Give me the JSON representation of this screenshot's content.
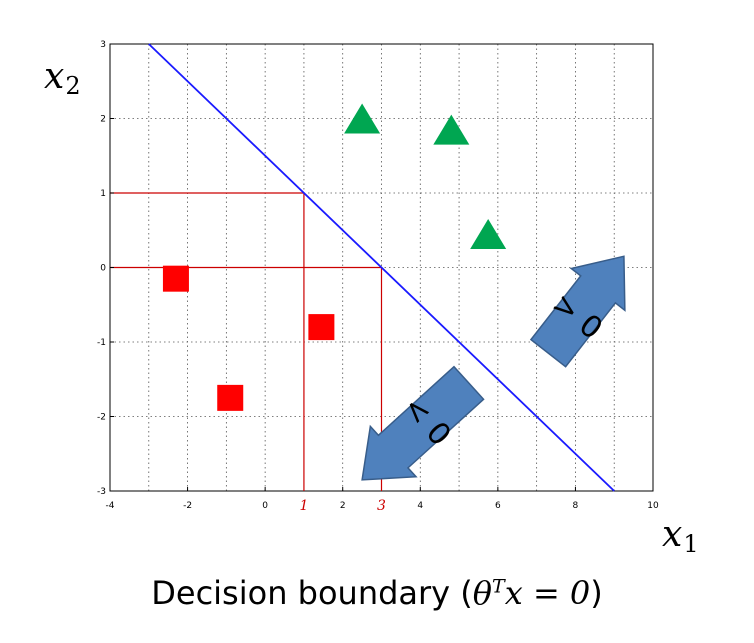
{
  "chart_data": {
    "type": "scatter",
    "title": "",
    "xlim": [
      -4,
      10
    ],
    "ylim": [
      -3,
      3
    ],
    "x_ticks": [
      -4,
      -2,
      0,
      2,
      4,
      6,
      8,
      10
    ],
    "y_ticks": [
      -3,
      -2,
      -1,
      0,
      1,
      2,
      3
    ],
    "grid": true,
    "xlabel": {
      "var": "x",
      "sub": "1"
    },
    "ylabel": {
      "var": "x",
      "sub": "2"
    },
    "boundary_line": {
      "from": [
        -3,
        3
      ],
      "to": [
        9,
        -3
      ],
      "color": "#1a1aff"
    },
    "reference_lines": [
      {
        "x": 1,
        "y": 1
      },
      {
        "x": 3,
        "y": 0
      }
    ],
    "reference_ticks": [
      {
        "x": 1,
        "label": "1"
      },
      {
        "x": 3,
        "label": "3"
      }
    ],
    "series": [
      {
        "marker": "square",
        "color": "#ff0000",
        "points": [
          [
            -2.3,
            -0.15
          ],
          [
            1.45,
            -0.8
          ],
          [
            -0.9,
            -1.75
          ]
        ]
      },
      {
        "marker": "triangle",
        "color": "#00a651",
        "points": [
          [
            2.5,
            2.0
          ],
          [
            4.8,
            1.85
          ],
          [
            5.75,
            0.45
          ]
        ]
      }
    ],
    "region_arrows": [
      {
        "label": "> 0",
        "tail": [
          7.3,
          -1.15
        ],
        "head": [
          9.25,
          0.15
        ]
      },
      {
        "label": "< 0",
        "tail": [
          5.25,
          -1.55
        ],
        "head": [
          2.5,
          -2.85
        ]
      }
    ]
  },
  "caption": {
    "text": "Decision boundary (",
    "theta": "θ",
    "sup": "T",
    "rest": "x = 0",
    "close": ")"
  },
  "colors": {
    "arrow_fill": "#4f81bd",
    "arrow_stroke": "#385d8a",
    "red_lines": "#cc0000"
  }
}
